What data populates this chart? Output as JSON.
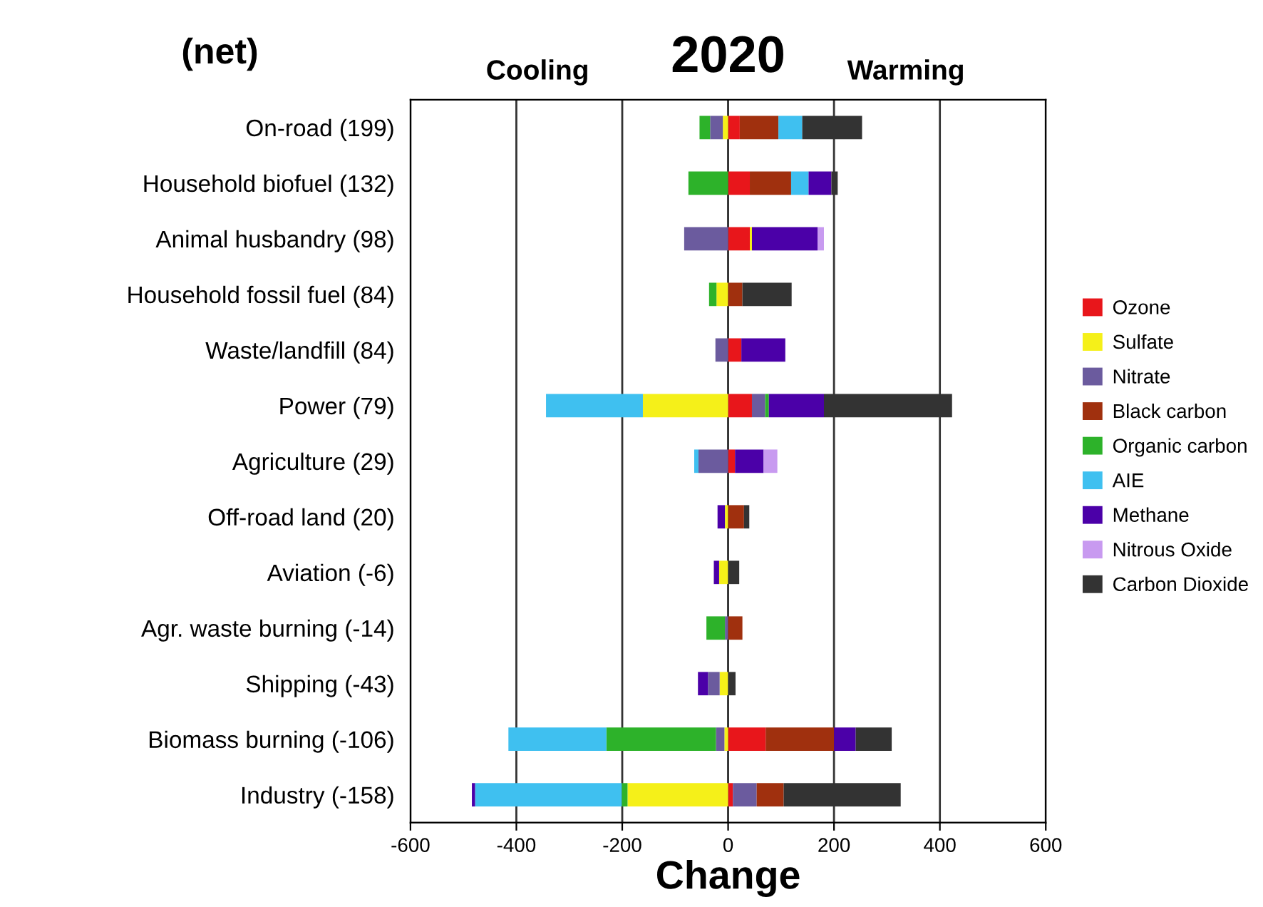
{
  "chart_data": {
    "type": "bar",
    "orientation": "horizontal",
    "stacked": true,
    "title": "2020",
    "xlabel": "Change",
    "annotations": [
      "(net)",
      "Cooling",
      "Warming"
    ],
    "categories": [
      "On-road (199)",
      "Household biofuel (132)",
      "Animal husbandry (98)",
      "Household fossil fuel (84)",
      "Waste/landfill (84)",
      "Power (79)",
      "Agriculture (29)",
      "Off-road land (20)",
      "Aviation (-6)",
      "Agr. waste burning (-14)",
      "Shipping (-43)",
      "Biomass burning (-106)",
      "Industry (-158)"
    ],
    "series": [
      {
        "name": "Ozone",
        "color": "#e8161b",
        "values": [
          22,
          41,
          41,
          null,
          25,
          45,
          13,
          null,
          null,
          null,
          null,
          71,
          9
        ]
      },
      {
        "name": "Sulfate",
        "color": "#f5f019",
        "values": [
          -10,
          null,
          4,
          -22,
          null,
          -161,
          null,
          -6,
          -17,
          null,
          -16,
          -7,
          -190
        ]
      },
      {
        "name": "Nitrate",
        "color": "#6b5b9e",
        "values": [
          -24,
          null,
          -83,
          null,
          -24,
          25,
          -56,
          null,
          null,
          -6,
          -22,
          -16,
          45
        ]
      },
      {
        "name": "Black carbon",
        "color": "#a0300e",
        "values": [
          73,
          78,
          null,
          27,
          null,
          null,
          null,
          30,
          null,
          27,
          null,
          129,
          51
        ]
      },
      {
        "name": "Organic carbon",
        "color": "#2db22a",
        "values": [
          -20,
          -75,
          null,
          -14,
          null,
          7,
          null,
          null,
          null,
          -35,
          null,
          -207,
          -11
        ]
      },
      {
        "name": "AIE",
        "color": "#3fc0f0",
        "values": [
          45,
          33,
          null,
          null,
          null,
          -183,
          -8,
          null,
          null,
          null,
          null,
          -185,
          -277
        ]
      },
      {
        "name": "Methane",
        "color": "#4b00a8",
        "values": [
          null,
          43,
          124,
          null,
          83,
          104,
          54,
          -14,
          -10,
          null,
          -19,
          41,
          -6
        ]
      },
      {
        "name": "Nitrous Oxide",
        "color": "#c89af0",
        "values": [
          null,
          null,
          12,
          null,
          null,
          null,
          26,
          null,
          null,
          null,
          null,
          null,
          null
        ]
      },
      {
        "name": "Carbon Dioxide",
        "color": "#333333",
        "values": [
          113,
          12,
          null,
          93,
          null,
          242,
          null,
          10,
          21,
          null,
          14,
          68,
          221
        ]
      }
    ],
    "xlim": [
      -600,
      600
    ],
    "xticks": [
      -600,
      -400,
      -200,
      0,
      200,
      400,
      600
    ],
    "grid": "x",
    "ref_lines": [
      {
        "axis": "x",
        "value": 0
      }
    ],
    "legend": "right"
  }
}
